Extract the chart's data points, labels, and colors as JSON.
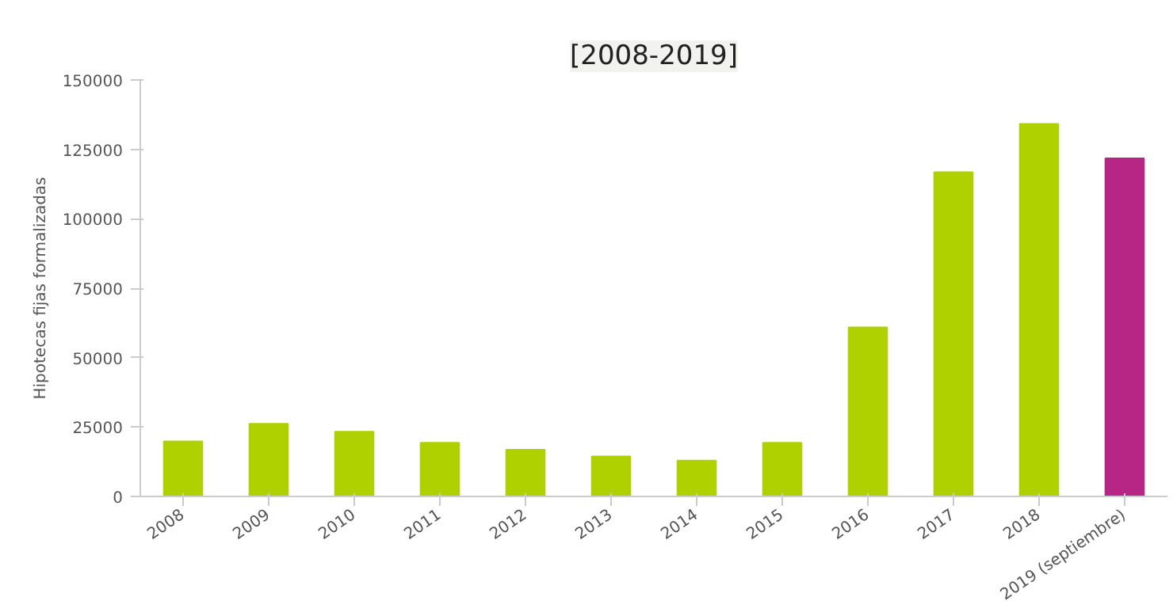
{
  "chart_data": {
    "type": "bar",
    "title": "[2008-2019]",
    "ylabel": "Hipotecas fijas formalizadas",
    "categories": [
      "2008",
      "2009",
      "2010",
      "2011",
      "2012",
      "2013",
      "2014",
      "2015",
      "2016",
      "2017",
      "2018",
      "2019 (septiembre)"
    ],
    "values": [
      19800,
      26200,
      23300,
      19300,
      16800,
      14400,
      12900,
      19300,
      60900,
      116800,
      134200,
      121800
    ],
    "colors": [
      "#b0d100",
      "#b0d100",
      "#b0d100",
      "#b0d100",
      "#b0d100",
      "#b0d100",
      "#b0d100",
      "#b0d100",
      "#b0d100",
      "#b0d100",
      "#b0d100",
      "#b72684"
    ],
    "ylim": [
      0,
      150000
    ],
    "yticks": [
      0,
      25000,
      50000,
      75000,
      100000,
      125000,
      150000
    ],
    "grid": false
  }
}
